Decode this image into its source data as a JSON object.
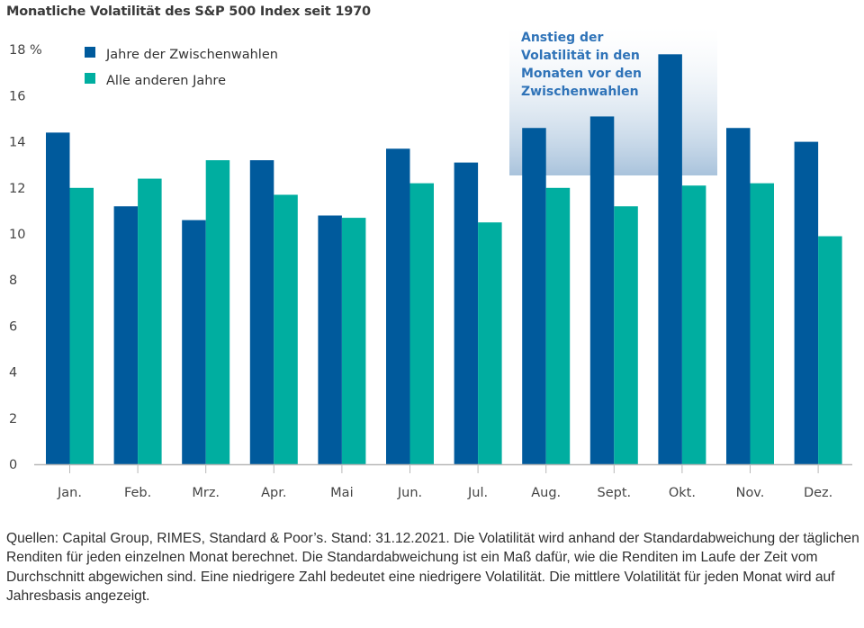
{
  "chart_data": {
    "type": "bar",
    "title": "Monatliche Volatilität des S&P 500 Index seit 1970",
    "xlabel": "",
    "ylabel": "",
    "ylim": [
      0,
      18
    ],
    "yticks": [
      {
        "value": 0,
        "label": "0"
      },
      {
        "value": 2,
        "label": "2"
      },
      {
        "value": 4,
        "label": "4"
      },
      {
        "value": 6,
        "label": "6"
      },
      {
        "value": 8,
        "label": "8"
      },
      {
        "value": 10,
        "label": "10"
      },
      {
        "value": 12,
        "label": "12"
      },
      {
        "value": 14,
        "label": "14"
      },
      {
        "value": 16,
        "label": "16"
      },
      {
        "value": 18,
        "label": "18 %"
      }
    ],
    "grid": false,
    "legend_position": "top-left",
    "categories": [
      "Jan.",
      "Feb.",
      "Mrz.",
      "Apr.",
      "Mai",
      "Jun.",
      "Jul.",
      "Aug.",
      "Sept.",
      "Okt.",
      "Nov.",
      "Dez."
    ],
    "series": [
      {
        "name": "Jahre der Zwischenwahlen",
        "color": "#005a9c",
        "values": [
          14.4,
          11.2,
          10.6,
          13.2,
          10.8,
          13.7,
          13.1,
          14.6,
          15.1,
          17.8,
          14.6,
          14.0
        ]
      },
      {
        "name": "Alle anderen Jahre",
        "color": "#00aea0",
        "values": [
          12.0,
          12.4,
          13.2,
          11.7,
          10.7,
          12.2,
          10.5,
          12.0,
          11.2,
          12.1,
          12.2,
          9.9
        ]
      }
    ],
    "annotation": {
      "lines": [
        "Anstieg der",
        "Volatilität in den",
        "Monaten vor den",
        "Zwischenwahlen"
      ],
      "highlight_categories": [
        "Aug.",
        "Sept.",
        "Okt."
      ],
      "color": "#2f73b8"
    }
  },
  "footnote": "Quellen: Capital Group, RIMES, Standard & Poor’s. Stand: 31.12.2021. Die Volatilität wird anhand der Standardabweichung der täglichen Renditen für jeden einzelnen Monat berechnet. Die Standardabweichung ist ein Maß dafür, wie die Renditen im Laufe der Zeit vom Durchschnitt abgewichen sind. Eine niedrigere Zahl bedeutet eine niedrigere Volatilität. Die mittlere Volatilität für jeden Monat wird auf Jahresbasis angezeigt."
}
